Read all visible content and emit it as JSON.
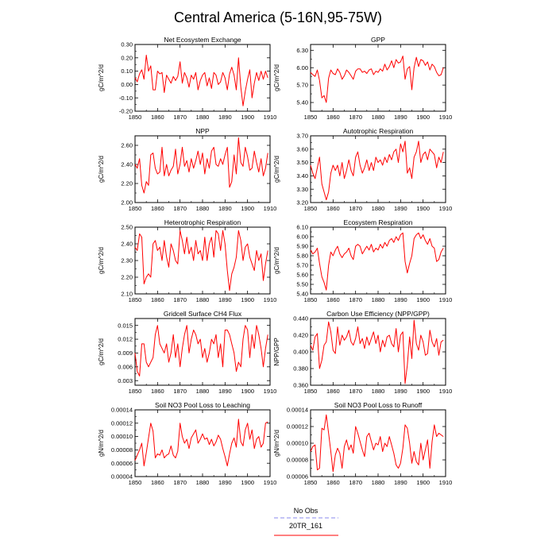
{
  "figure": {
    "title": "Central America (5-16N,95-75W)",
    "x_tick_labels": [
      "1850",
      "1860",
      "1870",
      "1880",
      "1890",
      "1900",
      "1910"
    ],
    "legend": [
      {
        "label": "No Obs",
        "color": "#8888ee",
        "style": "dashed"
      },
      {
        "label": "20TR_161",
        "color": "#ff0000",
        "style": "solid"
      }
    ],
    "series_color": "#ff0000"
  },
  "chart_data": [
    {
      "type": "line",
      "title": "Net Ecosystem Exchange",
      "ylabel": "gC/m^2/d",
      "xlim": [
        1850,
        1910
      ],
      "ylim": [
        -0.2,
        0.3
      ],
      "yticks": [
        -0.2,
        -0.1,
        0.0,
        0.1,
        0.2,
        0.3
      ],
      "ytick_labels": [
        "-0.20",
        "-0.10",
        "0.00",
        "0.10",
        "0.20",
        "0.30"
      ],
      "x_start": 1850,
      "values": [
        0.05,
        0.02,
        0.08,
        0.11,
        0.04,
        0.22,
        0.1,
        0.14,
        -0.04,
        -0.04,
        0.1,
        0.08,
        0.09,
        -0.06,
        0.07,
        0.04,
        0.01,
        0.06,
        0.03,
        0.06,
        0.17,
        0.01,
        0.09,
        0.05,
        -0.02,
        0.07,
        0.04,
        0.09,
        -0.04,
        0.03,
        0.07,
        0.09,
        -0.01,
        0.05,
        -0.03,
        0.09,
        0.07,
        0.0,
        0.02,
        0.09,
        0.05,
        -0.04,
        0.08,
        0.13,
        0.07,
        -0.04,
        0.2,
        -0.02,
        -0.16,
        -0.05,
        0.04,
        0.11,
        -0.1,
        0.01,
        0.09,
        0.03,
        0.1,
        0.04,
        0.1,
        0.05
      ]
    },
    {
      "type": "line",
      "title": "GPP",
      "ylabel": "gC/m^2/d",
      "xlim": [
        1850,
        1910
      ],
      "ylim": [
        5.25,
        6.4
      ],
      "yticks": [
        5.4,
        5.7,
        6.0,
        6.3
      ],
      "ytick_labels": [
        "5.40",
        "5.70",
        "6.00",
        "6.30"
      ],
      "x_start": 1850,
      "values": [
        5.92,
        5.88,
        5.85,
        5.96,
        5.78,
        5.48,
        5.52,
        5.4,
        5.82,
        5.96,
        5.9,
        5.88,
        5.98,
        5.92,
        5.8,
        5.86,
        5.96,
        5.92,
        5.86,
        5.8,
        5.94,
        5.98,
        5.98,
        5.92,
        5.94,
        5.9,
        5.96,
        5.98,
        5.88,
        5.94,
        5.92,
        5.98,
        5.94,
        6.06,
        5.96,
        6.02,
        6.12,
        6.0,
        6.14,
        6.08,
        6.1,
        6.2,
        5.8,
        5.98,
        6.02,
        5.62,
        6.0,
        6.18,
        6.02,
        6.14,
        6.12,
        6.04,
        6.1,
        5.96,
        6.06,
        6.02,
        5.92,
        5.86,
        5.88,
        6.0
      ]
    },
    {
      "type": "line",
      "title": "NPP",
      "ylabel": "gC/m^2/d",
      "xlim": [
        1850,
        1910
      ],
      "ylim": [
        2.0,
        2.7
      ],
      "yticks": [
        2.0,
        2.2,
        2.4,
        2.6
      ],
      "ytick_labels": [
        "2.00",
        "2.20",
        "2.40",
        "2.60"
      ],
      "x_start": 1850,
      "values": [
        2.4,
        2.36,
        2.46,
        2.18,
        2.1,
        2.22,
        2.18,
        2.5,
        2.52,
        2.36,
        2.3,
        2.32,
        2.58,
        2.28,
        2.4,
        2.28,
        2.34,
        2.38,
        2.56,
        2.3,
        2.4,
        2.58,
        2.38,
        2.44,
        2.32,
        2.46,
        2.36,
        2.44,
        2.54,
        2.4,
        2.52,
        2.3,
        2.46,
        2.36,
        2.54,
        2.58,
        2.4,
        2.38,
        2.46,
        2.4,
        2.5,
        2.58,
        2.16,
        2.22,
        2.5,
        2.3,
        2.68,
        2.42,
        2.38,
        2.58,
        2.48,
        2.34,
        2.36,
        2.54,
        2.42,
        2.32,
        2.46,
        2.28,
        2.36,
        2.52
      ]
    },
    {
      "type": "line",
      "title": "Autotrophic Respiration",
      "ylabel": "gC/m^2/d",
      "xlim": [
        1850,
        1910
      ],
      "ylim": [
        3.2,
        3.7
      ],
      "yticks": [
        3.2,
        3.3,
        3.4,
        3.5,
        3.6,
        3.7
      ],
      "ytick_labels": [
        "3.20",
        "3.30",
        "3.40",
        "3.50",
        "3.60",
        "3.70"
      ],
      "x_start": 1850,
      "values": [
        3.48,
        3.42,
        3.38,
        3.46,
        3.54,
        3.34,
        3.28,
        3.22,
        3.28,
        3.42,
        3.48,
        3.44,
        3.48,
        3.4,
        3.5,
        3.38,
        3.44,
        3.52,
        3.44,
        3.4,
        3.54,
        3.58,
        3.48,
        3.42,
        3.46,
        3.52,
        3.44,
        3.5,
        3.44,
        3.54,
        3.5,
        3.52,
        3.48,
        3.54,
        3.5,
        3.56,
        3.52,
        3.58,
        3.6,
        3.5,
        3.64,
        3.58,
        3.66,
        3.42,
        3.46,
        3.38,
        3.54,
        3.58,
        3.66,
        3.5,
        3.56,
        3.58,
        3.52,
        3.6,
        3.58,
        3.56,
        3.46,
        3.54,
        3.5,
        3.58
      ]
    },
    {
      "type": "line",
      "title": "Heterotrophic Respiration",
      "ylabel": "gC/m^2/d",
      "xlim": [
        1850,
        1910
      ],
      "ylim": [
        2.1,
        2.5
      ],
      "yticks": [
        2.1,
        2.2,
        2.3,
        2.4,
        2.5
      ],
      "ytick_labels": [
        "2.10",
        "2.20",
        "2.30",
        "2.40",
        "2.50"
      ],
      "x_start": 1850,
      "values": [
        2.38,
        2.36,
        2.46,
        2.44,
        2.16,
        2.2,
        2.22,
        2.2,
        2.4,
        2.42,
        2.36,
        2.38,
        2.3,
        2.42,
        2.32,
        2.26,
        2.4,
        2.36,
        2.3,
        2.28,
        2.48,
        2.42,
        2.34,
        2.44,
        2.34,
        2.38,
        2.3,
        2.42,
        2.34,
        2.36,
        2.3,
        2.44,
        2.3,
        2.4,
        2.44,
        2.32,
        2.48,
        2.46,
        2.36,
        2.48,
        2.4,
        2.24,
        2.12,
        2.22,
        2.26,
        2.32,
        2.48,
        2.42,
        2.3,
        2.38,
        2.4,
        2.32,
        2.28,
        2.24,
        2.36,
        2.3,
        2.34,
        2.18,
        2.28,
        2.36
      ]
    },
    {
      "type": "line",
      "title": "Ecosystem Respiration",
      "ylabel": "gC/m^2/d",
      "xlim": [
        1850,
        1910
      ],
      "ylim": [
        5.4,
        6.1
      ],
      "yticks": [
        5.4,
        5.5,
        5.6,
        5.7,
        5.8,
        5.9,
        6.0,
        6.1
      ],
      "ytick_labels": [
        "5.40",
        "5.50",
        "5.60",
        "5.70",
        "5.80",
        "5.90",
        "6.00",
        "6.10"
      ],
      "x_start": 1850,
      "values": [
        5.86,
        5.82,
        5.84,
        5.88,
        5.72,
        5.58,
        5.52,
        5.44,
        5.7,
        5.84,
        5.8,
        5.86,
        5.9,
        5.82,
        5.78,
        5.82,
        5.84,
        5.88,
        5.8,
        5.76,
        5.9,
        5.92,
        5.9,
        5.82,
        5.86,
        5.9,
        5.86,
        5.92,
        5.84,
        5.88,
        5.86,
        5.92,
        5.88,
        5.94,
        5.9,
        5.96,
        5.98,
        5.94,
        6.0,
        5.96,
        6.02,
        6.04,
        5.74,
        5.62,
        5.72,
        5.8,
        5.98,
        6.02,
        6.04,
        5.98,
        6.02,
        5.96,
        5.92,
        5.98,
        5.9,
        5.88,
        5.74,
        5.76,
        5.84,
        5.88
      ]
    },
    {
      "type": "line",
      "title": "Gridcell Surface CH4 Flux",
      "ylabel": "gC/m^2/d",
      "xlim": [
        1850,
        1910
      ],
      "ylim": [
        0.002,
        0.0165
      ],
      "yticks": [
        0.003,
        0.006,
        0.009,
        0.012,
        0.015
      ],
      "ytick_labels": [
        "0.003",
        "0.006",
        "0.009",
        "0.012",
        "0.015"
      ],
      "x_start": 1850,
      "values": [
        0.009,
        0.005,
        0.004,
        0.011,
        0.011,
        0.007,
        0.006,
        0.007,
        0.008,
        0.013,
        0.015,
        0.011,
        0.01,
        0.009,
        0.011,
        0.007,
        0.009,
        0.013,
        0.008,
        0.011,
        0.006,
        0.01,
        0.013,
        0.015,
        0.009,
        0.012,
        0.014,
        0.013,
        0.011,
        0.012,
        0.008,
        0.01,
        0.007,
        0.009,
        0.012,
        0.011,
        0.013,
        0.008,
        0.011,
        0.006,
        0.014,
        0.014,
        0.013,
        0.011,
        0.009,
        0.005,
        0.007,
        0.006,
        0.012,
        0.015,
        0.014,
        0.008,
        0.013,
        0.01,
        0.015,
        0.013,
        0.01,
        0.006,
        0.01,
        0.013
      ]
    },
    {
      "type": "line",
      "title": "Carbon Use Efficiency (NPP/GPP)",
      "ylabel": "NPP/GPP",
      "xlim": [
        1850,
        1910
      ],
      "ylim": [
        0.36,
        0.44
      ],
      "yticks": [
        0.36,
        0.38,
        0.4,
        0.42,
        0.44
      ],
      "ytick_labels": [
        "0.360",
        "0.380",
        "0.400",
        "0.420",
        "0.440"
      ],
      "x_start": 1850,
      "values": [
        0.408,
        0.402,
        0.418,
        0.422,
        0.38,
        0.39,
        0.408,
        0.412,
        0.436,
        0.424,
        0.402,
        0.398,
        0.43,
        0.408,
        0.42,
        0.414,
        0.418,
        0.426,
        0.412,
        0.408,
        0.416,
        0.43,
        0.41,
        0.416,
        0.404,
        0.418,
        0.408,
        0.416,
        0.424,
        0.41,
        0.42,
        0.4,
        0.414,
        0.406,
        0.418,
        0.42,
        0.41,
        0.406,
        0.428,
        0.4,
        0.42,
        0.424,
        0.362,
        0.384,
        0.418,
        0.392,
        0.438,
        0.41,
        0.402,
        0.42,
        0.412,
        0.396,
        0.398,
        0.426,
        0.412,
        0.406,
        0.416,
        0.396,
        0.412,
        0.414
      ]
    },
    {
      "type": "line",
      "title": "Soil NO3 Pool Loss to Leaching",
      "ylabel": "gN/m^2/d",
      "xlim": [
        1850,
        1910
      ],
      "ylim": [
        4e-05,
        0.00014
      ],
      "yticks": [
        4e-05,
        6e-05,
        8e-05,
        0.0001,
        0.00012,
        0.00014
      ],
      "ytick_labels": [
        "0.00004",
        "0.00006",
        "0.00008",
        "0.00010",
        "0.00012",
        "0.00014"
      ],
      "x_start": 1850,
      "values": [
        6.4e-05,
        7.2e-05,
        8e-05,
        9e-05,
        5.6e-05,
        7.6e-05,
        9.8e-05,
        0.00012,
        0.000108,
        6.8e-05,
        7.4e-05,
        7.2e-05,
        8e-05,
        6.8e-05,
        7.2e-05,
        7.4e-05,
        8.6e-05,
        7.2e-05,
        6.8e-05,
        7.8e-05,
        0.00012,
        0.0001,
        9e-05,
        9.6e-05,
        8.2e-05,
        9.8e-05,
        0.000104,
        0.00011,
        9e-05,
        9.6e-05,
        0.000104,
        9.6e-05,
        9.8e-05,
        8.8e-05,
        9.6e-05,
        8.6e-05,
        9.2e-05,
        0.000102,
        9.6e-05,
        8.2e-05,
        7e-05,
        5.6e-05,
        7.4e-05,
        9e-05,
        9.8e-05,
        8.4e-05,
        0.000126,
        9.2e-05,
        8.6e-05,
        0.00011,
        0.00012,
        9.6e-05,
        0.00011,
        8.2e-05,
        9.6e-05,
        0.0001,
        8.4e-05,
        9e-05,
        0.00012,
        0.000122
      ]
    },
    {
      "type": "line",
      "title": "Soil NO3 Pool Loss to Runoff",
      "ylabel": "gN/m^2/d",
      "xlim": [
        1850,
        1910
      ],
      "ylim": [
        6e-05,
        0.00014
      ],
      "yticks": [
        6e-05,
        8e-05,
        0.0001,
        0.00012,
        0.00014
      ],
      "ytick_labels": [
        "0.00006",
        "0.00008",
        "0.00010",
        "0.00012",
        "0.00014"
      ],
      "x_start": 1850,
      "values": [
        9e-05,
        9.6e-05,
        9.8e-05,
        6.8e-05,
        7e-05,
        0.000118,
        0.000116,
        0.000134,
        0.000112,
        9e-05,
        6.6e-05,
        8.6e-05,
        9.4e-05,
        8.8e-05,
        7e-05,
        9.6e-05,
        0.000104,
        9.2e-05,
        9.8e-05,
        8.8e-05,
        0.00012,
        0.000112,
        0.000102,
        9.2e-05,
        8.4e-05,
        0.000108,
        0.000112,
        0.000102,
        9.2e-05,
        0.0001,
        9.8e-05,
        0.000108,
        9e-05,
        0.0001,
        9.6e-05,
        0.000108,
        9.8e-05,
        8.8e-05,
        7.4e-05,
        7e-05,
        7.6e-05,
        9.4e-05,
        0.000122,
        0.000118,
        0.0001,
        7.6e-05,
        9e-05,
        7.8e-05,
        7.4e-05,
        0.0001,
        8e-05,
        9.2e-05,
        0.000104,
        7e-05,
        0.000102,
        0.000122,
        0.000108,
        0.000112,
        0.00011,
        0.000108
      ]
    }
  ]
}
